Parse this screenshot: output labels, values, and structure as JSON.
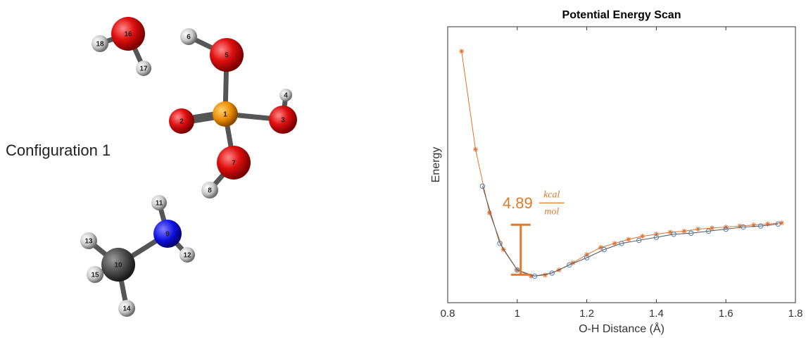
{
  "molecule": {
    "caption": "Configuration 1",
    "atoms": [
      "1",
      "2",
      "3",
      "4",
      "5",
      "6",
      "7",
      "8",
      "9",
      "10",
      "11",
      "12",
      "13",
      "14",
      "15",
      "16",
      "17",
      "18"
    ]
  },
  "chart_data": {
    "type": "line",
    "title": "Potential Energy Scan",
    "xlabel": "O-H Distance (Å)",
    "ylabel": "Energy",
    "xlim": [
      0.8,
      1.8
    ],
    "xticks": [
      0.8,
      1,
      1.2,
      1.4,
      1.6,
      1.8
    ],
    "ylim": [
      -2.6,
      24.4
    ],
    "series": [
      {
        "color": "#e07030",
        "marker": "star",
        "x": [
          0.84,
          0.88,
          0.92,
          0.96,
          1.0,
          1.04,
          1.08,
          1.12,
          1.16,
          1.2,
          1.24,
          1.28,
          1.32,
          1.36,
          1.4,
          1.44,
          1.48,
          1.52,
          1.56,
          1.6,
          1.64,
          1.68,
          1.72,
          1.76
        ],
        "values": [
          22.0,
          12.4,
          6.2,
          2.6,
          0.6,
          0.0,
          0.1,
          0.6,
          1.3,
          2.1,
          2.8,
          3.2,
          3.6,
          3.9,
          4.1,
          4.3,
          4.4,
          4.6,
          4.7,
          4.8,
          4.9,
          5.0,
          5.1,
          5.2
        ]
      },
      {
        "color": "#4a7fb5",
        "line_color": "#555555",
        "marker": "circle",
        "x": [
          0.9,
          0.95,
          1.0,
          1.05,
          1.1,
          1.15,
          1.2,
          1.25,
          1.3,
          1.35,
          1.4,
          1.45,
          1.5,
          1.55,
          1.6,
          1.65,
          1.7,
          1.75
        ],
        "values": [
          8.8,
          3.2,
          0.6,
          0.0,
          0.3,
          1.1,
          1.8,
          2.6,
          3.2,
          3.5,
          3.8,
          4.1,
          4.2,
          4.4,
          4.6,
          4.8,
          4.9,
          5.1
        ]
      }
    ],
    "annotation": {
      "text": "4.89",
      "unit_numerator": "kcal",
      "unit_denominator": "mol",
      "color": "#e07a2a",
      "x": 1.01,
      "y_low": 0.14,
      "y_high": 5.03
    }
  }
}
